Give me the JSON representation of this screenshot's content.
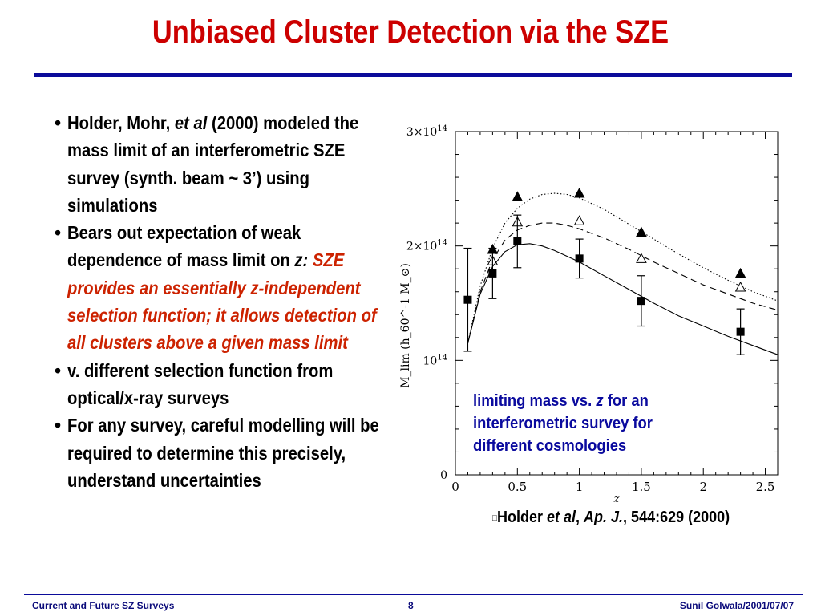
{
  "title": "Unbiased Cluster Detection via the SZE",
  "bullets": [
    {
      "bullet": "•",
      "parts": [
        {
          "text": "Holder, Mohr, ",
          "style": "normal"
        },
        {
          "text": "et al",
          "style": "italic"
        },
        {
          "text": " (2000) modeled the mass limit of an interferometric SZE survey (synth. beam ~ 3’) using simulations",
          "style": "normal"
        }
      ]
    },
    {
      "bullet": "•",
      "parts": [
        {
          "text": "Bears out expectation of weak dependence of mass limit on ",
          "style": "normal"
        },
        {
          "text": "z:",
          "style": "italic"
        },
        {
          "text": " ",
          "style": "normal"
        },
        {
          "text": "SZE provides an essentially z-independent selection function; it allows detection of all clusters above a given mass limit",
          "style": "red"
        }
      ]
    },
    {
      "bullet": "•",
      "parts": [
        {
          "text": "v. different selection function from optical/x-ray surveys",
          "style": "normal"
        }
      ]
    },
    {
      "bullet": "•",
      "parts": [
        {
          "text": "For any survey, careful modelling will be required to determine this precisely, understand uncertainties",
          "style": "normal"
        }
      ]
    }
  ],
  "caption": {
    "pre": "limiting mass vs. ",
    "z": "z",
    "post": " for an interferometric survey for different cosmologies"
  },
  "citation": {
    "glyph": "□",
    "author": "Holder ",
    "etal": "et al",
    "sep": ", ",
    "journal": "Ap. J.",
    "rest": ", 544:629 (2000)"
  },
  "footer": {
    "left": "Current and Future SZ Surveys",
    "center": "8",
    "right": "Sunil Golwala/2001/07/07"
  },
  "colors": {
    "title": "#cc0000",
    "rule": "#0b0b9a",
    "emphasis": "#cc2200",
    "caption": "#0a0a9e"
  },
  "chart_data": {
    "type": "scatter",
    "xlabel": "z",
    "ylabel": "M_lim (h_60^-1 M_⊙)",
    "xlim": [
      0,
      2.6
    ],
    "ylim": [
      0,
      300000000000000.0
    ],
    "xticks": [
      0,
      0.5,
      1,
      1.5,
      2,
      2.5
    ],
    "xtick_labels": [
      "0",
      "0.5",
      "1",
      "1.5",
      "2",
      "2.5"
    ],
    "yticks": [
      0,
      100000000000000.0,
      200000000000000.0,
      300000000000000.0
    ],
    "ytick_labels": [
      {
        "mant": "0",
        "exp": ""
      },
      {
        "mant": "10",
        "exp": "14"
      },
      {
        "mant": "2×10",
        "exp": "14"
      },
      {
        "mant": "3×10",
        "exp": "14"
      }
    ],
    "series": [
      {
        "marker": "filled-triangle",
        "curve": "dotted",
        "points": [
          {
            "x": 0.3,
            "y": 197000000000000.0
          },
          {
            "x": 0.5,
            "y": 243000000000000.0
          },
          {
            "x": 1.0,
            "y": 246000000000000.0
          },
          {
            "x": 1.5,
            "y": 212000000000000.0
          },
          {
            "x": 2.3,
            "y": 176000000000000.0
          }
        ],
        "curve_pts": [
          [
            0.1,
            115000000000000.0
          ],
          [
            0.2,
            165000000000000.0
          ],
          [
            0.3,
            198000000000000.0
          ],
          [
            0.4,
            220000000000000.0
          ],
          [
            0.5,
            233000000000000.0
          ],
          [
            0.6,
            241000000000000.0
          ],
          [
            0.7,
            245000000000000.0
          ],
          [
            0.8,
            246000000000000.0
          ],
          [
            0.9,
            245000000000000.0
          ],
          [
            1.0,
            242000000000000.0
          ],
          [
            1.2,
            232000000000000.0
          ],
          [
            1.4,
            219000000000000.0
          ],
          [
            1.6,
            206000000000000.0
          ],
          [
            1.8,
            193000000000000.0
          ],
          [
            2.0,
            181000000000000.0
          ],
          [
            2.2,
            170000000000000.0
          ],
          [
            2.4,
            160000000000000.0
          ],
          [
            2.6,
            152000000000000.0
          ]
        ]
      },
      {
        "marker": "open-triangle",
        "curve": "dashed",
        "points": [
          {
            "x": 0.3,
            "y": 187000000000000.0
          },
          {
            "x": 0.5,
            "y": 221000000000000.0
          },
          {
            "x": 1.0,
            "y": 222000000000000.0
          },
          {
            "x": 1.5,
            "y": 189000000000000.0
          },
          {
            "x": 2.3,
            "y": 164000000000000.0
          }
        ],
        "curve_pts": [
          [
            0.1,
            115000000000000.0
          ],
          [
            0.2,
            160000000000000.0
          ],
          [
            0.3,
            188000000000000.0
          ],
          [
            0.4,
            205000000000000.0
          ],
          [
            0.5,
            214000000000000.0
          ],
          [
            0.6,
            218000000000000.0
          ],
          [
            0.7,
            220000000000000.0
          ],
          [
            0.8,
            220000000000000.0
          ],
          [
            0.9,
            218000000000000.0
          ],
          [
            1.0,
            215000000000000.0
          ],
          [
            1.2,
            207000000000000.0
          ],
          [
            1.4,
            197000000000000.0
          ],
          [
            1.6,
            186000000000000.0
          ],
          [
            1.8,
            176000000000000.0
          ],
          [
            2.0,
            166000000000000.0
          ],
          [
            2.2,
            158000000000000.0
          ],
          [
            2.4,
            150000000000000.0
          ],
          [
            2.6,
            144000000000000.0
          ]
        ]
      },
      {
        "marker": "filled-square",
        "curve": "solid",
        "points": [
          {
            "x": 0.1,
            "y": 153000000000000.0,
            "err": 45000000000000.0
          },
          {
            "x": 0.3,
            "y": 176000000000000.0,
            "err": 22000000000000.0
          },
          {
            "x": 0.5,
            "y": 204000000000000.0,
            "err": 23000000000000.0
          },
          {
            "x": 1.0,
            "y": 189000000000000.0,
            "err": 17000000000000.0
          },
          {
            "x": 1.5,
            "y": 152000000000000.0,
            "err": 22000000000000.0
          },
          {
            "x": 2.3,
            "y": 125000000000000.0,
            "err": 20000000000000.0
          }
        ],
        "curve_pts": [
          [
            0.1,
            115000000000000.0
          ],
          [
            0.2,
            158000000000000.0
          ],
          [
            0.3,
            182000000000000.0
          ],
          [
            0.4,
            195000000000000.0
          ],
          [
            0.5,
            201000000000000.0
          ],
          [
            0.6,
            202000000000000.0
          ],
          [
            0.7,
            200000000000000.0
          ],
          [
            0.8,
            196000000000000.0
          ],
          [
            0.9,
            191000000000000.0
          ],
          [
            1.0,
            186000000000000.0
          ],
          [
            1.2,
            174000000000000.0
          ],
          [
            1.4,
            162000000000000.0
          ],
          [
            1.6,
            150000000000000.0
          ],
          [
            1.8,
            139000000000000.0
          ],
          [
            2.0,
            130000000000000.0
          ],
          [
            2.2,
            121000000000000.0
          ],
          [
            2.4,
            113000000000000.0
          ],
          [
            2.6,
            105000000000000.0
          ]
        ]
      }
    ]
  }
}
